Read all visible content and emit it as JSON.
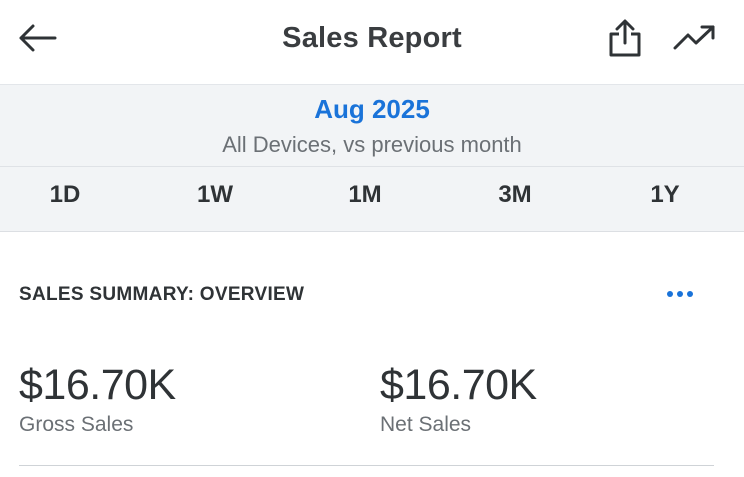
{
  "header": {
    "title": "Sales Report",
    "back_icon": "arrow-left-icon",
    "share_icon": "share-icon",
    "trend_icon": "trending-up-icon"
  },
  "period": {
    "label": "Aug 2025",
    "subtitle": "All Devices, vs previous month"
  },
  "range_tabs": [
    "1D",
    "1W",
    "1M",
    "3M",
    "1Y"
  ],
  "summary": {
    "title": "SALES SUMMARY: OVERVIEW",
    "more_icon": "more-horizontal-icon",
    "metrics": [
      {
        "value": "$16.70K",
        "label": "Gross Sales"
      },
      {
        "value": "$16.70K",
        "label": "Net Sales"
      }
    ]
  },
  "colors": {
    "accent": "#1a73d9",
    "text": "#2f3336",
    "muted": "#6b7075",
    "band_background": "#f2f4f6"
  }
}
